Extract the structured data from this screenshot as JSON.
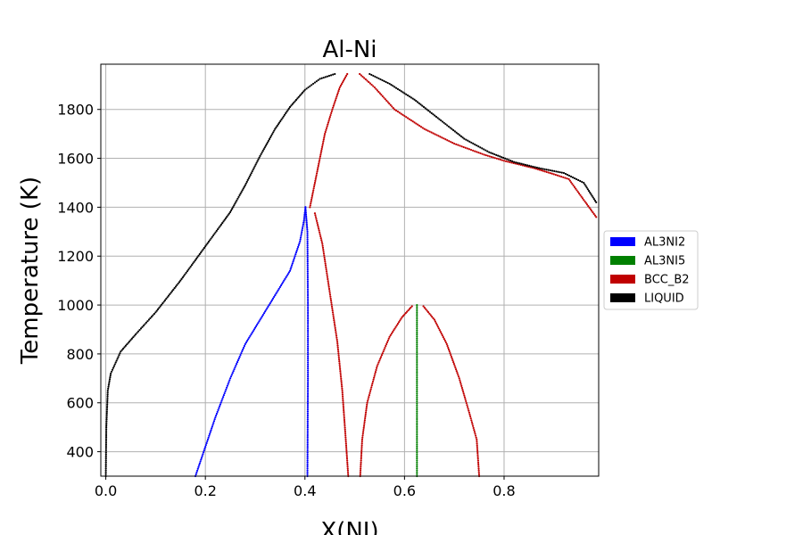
{
  "chart_data": {
    "type": "scatter",
    "title": "Al-Ni",
    "xlabel": "X(NI)",
    "ylabel": "Temperature (K)",
    "xlim": [
      -0.01,
      0.99
    ],
    "ylim": [
      300,
      1985
    ],
    "grid": true,
    "legend_position": "right",
    "x_ticks": [
      0.0,
      0.2,
      0.4,
      0.6,
      0.8
    ],
    "x_tick_labels": [
      "0.0",
      "0.2",
      "0.4",
      "0.6",
      "0.8"
    ],
    "y_ticks": [
      400,
      600,
      800,
      1000,
      1200,
      1400,
      1600,
      1800
    ],
    "y_tick_labels": [
      "400",
      "600",
      "800",
      "1000",
      "1200",
      "1400",
      "1600",
      "1800"
    ],
    "series": [
      {
        "name": "AL3NI2",
        "color": "#0000ff",
        "curves": [
          [
            [
              0.18,
              300
            ],
            [
              0.2,
              420
            ],
            [
              0.22,
              540
            ],
            [
              0.25,
              700
            ],
            [
              0.28,
              840
            ],
            [
              0.31,
              940
            ],
            [
              0.34,
              1040
            ],
            [
              0.37,
              1140
            ],
            [
              0.39,
              1260
            ],
            [
              0.398,
              1345
            ],
            [
              0.401,
              1400
            ]
          ],
          [
            [
              0.401,
              1400
            ],
            [
              0.405,
              1300
            ],
            [
              0.406,
              1000
            ],
            [
              0.406,
              700
            ],
            [
              0.405,
              300
            ]
          ]
        ]
      },
      {
        "name": "AL3NI5",
        "color": "#008000",
        "curves": [
          [
            [
              0.625,
              1000
            ],
            [
              0.625,
              300
            ]
          ]
        ]
      },
      {
        "name": "BCC_B2",
        "color": "#c00000",
        "curves": [
          [
            [
              0.41,
              1400
            ],
            [
              0.42,
              1500
            ],
            [
              0.43,
              1600
            ],
            [
              0.44,
              1700
            ],
            [
              0.455,
              1800
            ],
            [
              0.47,
              1890
            ],
            [
              0.485,
              1945
            ]
          ],
          [
            [
              0.51,
              1945
            ],
            [
              0.54,
              1890
            ],
            [
              0.58,
              1800
            ],
            [
              0.64,
              1720
            ],
            [
              0.7,
              1660
            ],
            [
              0.76,
              1615
            ],
            [
              0.8,
              1590
            ],
            [
              0.86,
              1560
            ],
            [
              0.9,
              1535
            ],
            [
              0.93,
              1515
            ],
            [
              0.96,
              1430
            ],
            [
              0.985,
              1360
            ]
          ],
          [
            [
              0.42,
              1375
            ],
            [
              0.435,
              1250
            ],
            [
              0.45,
              1050
            ],
            [
              0.465,
              850
            ],
            [
              0.475,
              650
            ],
            [
              0.482,
              450
            ],
            [
              0.487,
              300
            ]
          ],
          [
            [
              0.511,
              300
            ],
            [
              0.515,
              450
            ],
            [
              0.525,
              600
            ],
            [
              0.545,
              750
            ],
            [
              0.57,
              870
            ],
            [
              0.595,
              950
            ],
            [
              0.615,
              995
            ]
          ],
          [
            [
              0.638,
              995
            ],
            [
              0.66,
              940
            ],
            [
              0.685,
              840
            ],
            [
              0.71,
              700
            ],
            [
              0.73,
              560
            ],
            [
              0.745,
              450
            ],
            [
              0.75,
              300
            ]
          ]
        ]
      },
      {
        "name": "LIQUID",
        "color": "#000000",
        "curves": [
          [
            [
              0.0,
              300
            ],
            [
              0.001,
              500
            ],
            [
              0.004,
              650
            ],
            [
              0.01,
              720
            ],
            [
              0.03,
              810
            ],
            [
              0.06,
              880
            ],
            [
              0.1,
              970
            ],
            [
              0.15,
              1100
            ],
            [
              0.2,
              1240
            ],
            [
              0.25,
              1380
            ],
            [
              0.28,
              1490
            ],
            [
              0.31,
              1610
            ],
            [
              0.34,
              1720
            ],
            [
              0.37,
              1810
            ],
            [
              0.4,
              1880
            ],
            [
              0.43,
              1925
            ],
            [
              0.46,
              1945
            ]
          ],
          [
            [
              0.53,
              1945
            ],
            [
              0.57,
              1905
            ],
            [
              0.62,
              1840
            ],
            [
              0.67,
              1760
            ],
            [
              0.72,
              1680
            ],
            [
              0.77,
              1625
            ],
            [
              0.82,
              1585
            ],
            [
              0.87,
              1560
            ],
            [
              0.92,
              1540
            ],
            [
              0.96,
              1500
            ],
            [
              0.985,
              1420
            ]
          ]
        ]
      }
    ],
    "legend": [
      "AL3NI2",
      "AL3NI5",
      "BCC_B2",
      "LIQUID"
    ]
  }
}
